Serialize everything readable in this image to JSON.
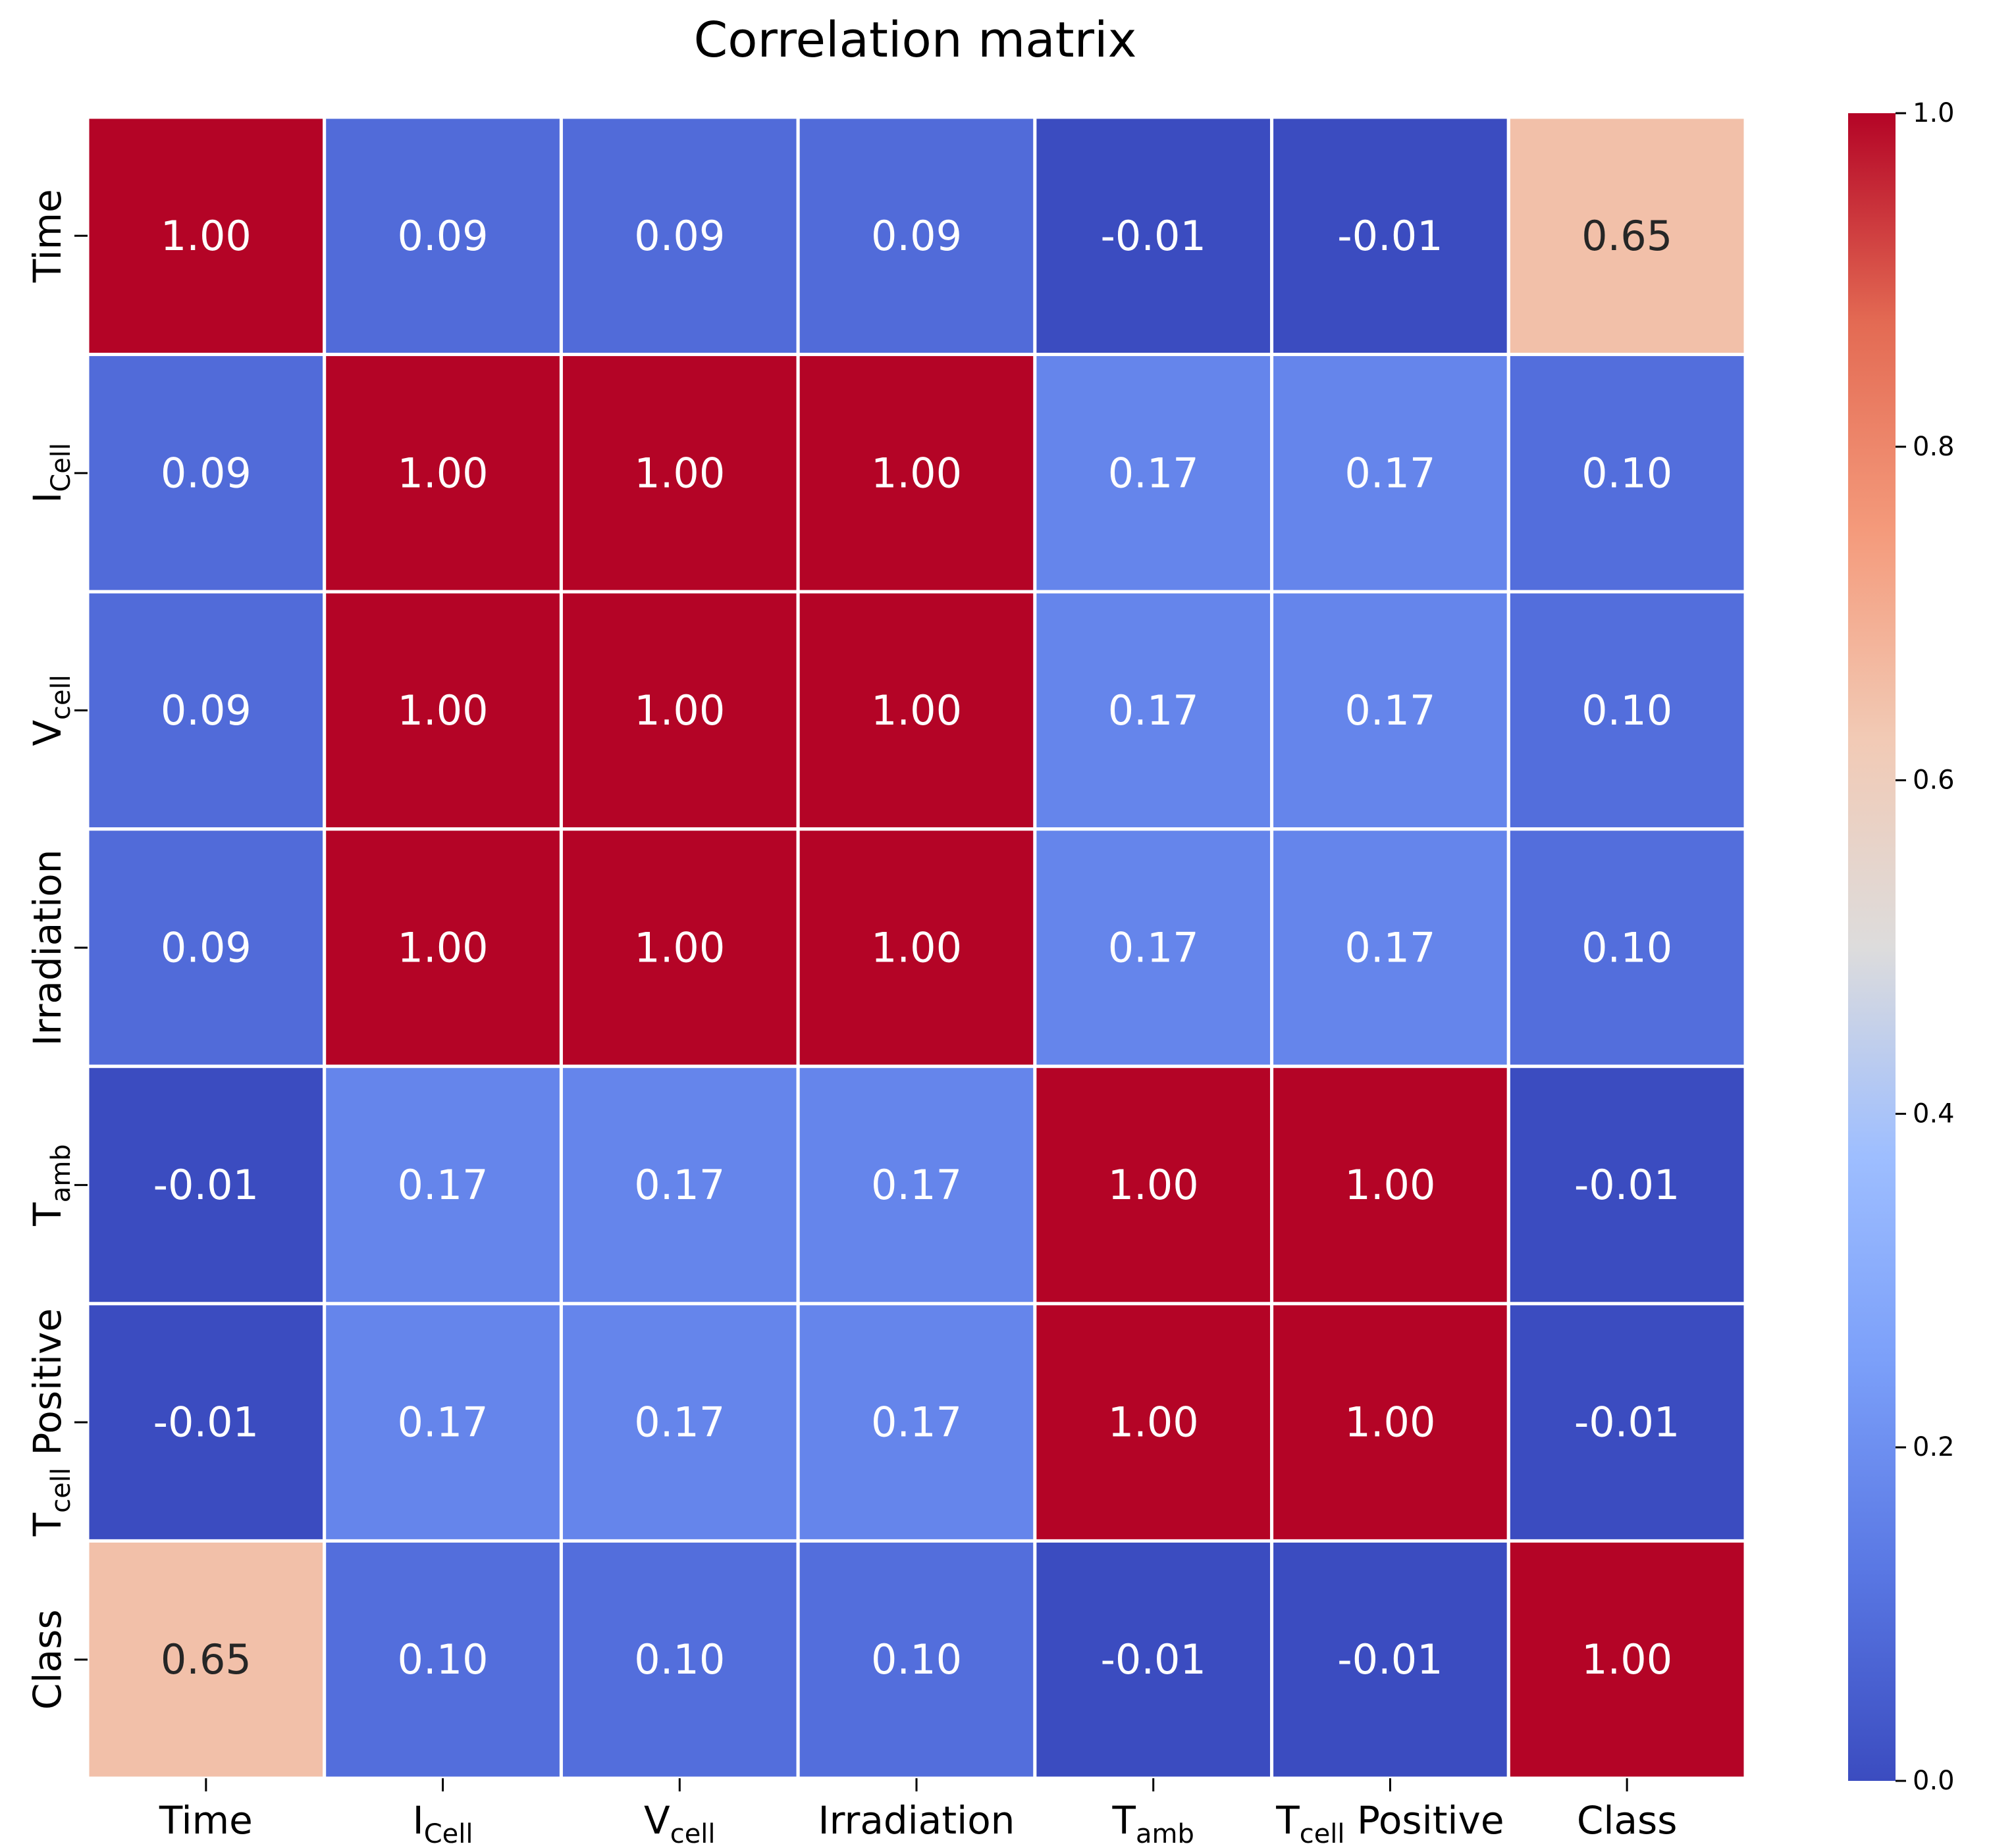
{
  "chart_data": {
    "type": "heatmap",
    "title": "Correlation matrix",
    "colormap": "coolwarm",
    "value_format": "2 decimals",
    "row_labels": [
      {
        "main": "Time",
        "sub": ""
      },
      {
        "main": "I",
        "sub": "Cell"
      },
      {
        "main": "V",
        "sub": "cell"
      },
      {
        "main": "Irradiation",
        "sub": ""
      },
      {
        "main": "T",
        "sub": "amb"
      },
      {
        "main": "T",
        "sub": "cell",
        "suffix": " Positive"
      },
      {
        "main": "Class",
        "sub": ""
      }
    ],
    "col_labels": [
      {
        "main": "Time",
        "sub": ""
      },
      {
        "main": "I",
        "sub": "Cell"
      },
      {
        "main": "V",
        "sub": "cell"
      },
      {
        "main": "Irradiation",
        "sub": ""
      },
      {
        "main": "T",
        "sub": "amb"
      },
      {
        "main": "T",
        "sub": "cell",
        "suffix": " Positive"
      },
      {
        "main": "Class",
        "sub": ""
      }
    ],
    "values": [
      [
        1.0,
        0.09,
        0.09,
        0.09,
        -0.01,
        -0.01,
        0.65
      ],
      [
        0.09,
        1.0,
        1.0,
        1.0,
        0.17,
        0.17,
        0.1
      ],
      [
        0.09,
        1.0,
        1.0,
        1.0,
        0.17,
        0.17,
        0.1
      ],
      [
        0.09,
        1.0,
        1.0,
        1.0,
        0.17,
        0.17,
        0.1
      ],
      [
        -0.01,
        0.17,
        0.17,
        0.17,
        1.0,
        1.0,
        -0.01
      ],
      [
        -0.01,
        0.17,
        0.17,
        0.17,
        1.0,
        1.0,
        -0.01
      ],
      [
        0.65,
        0.1,
        0.1,
        0.1,
        -0.01,
        -0.01,
        1.0
      ]
    ],
    "colorbar": {
      "range": [
        0.0,
        1.0
      ],
      "ticks": [
        0.0,
        0.2,
        0.4,
        0.6,
        0.8,
        1.0
      ],
      "tick_labels": [
        "0.0",
        "0.2",
        "0.4",
        "0.6",
        "0.8",
        "1.0"
      ]
    },
    "grid_line_color": "#ffffff"
  }
}
